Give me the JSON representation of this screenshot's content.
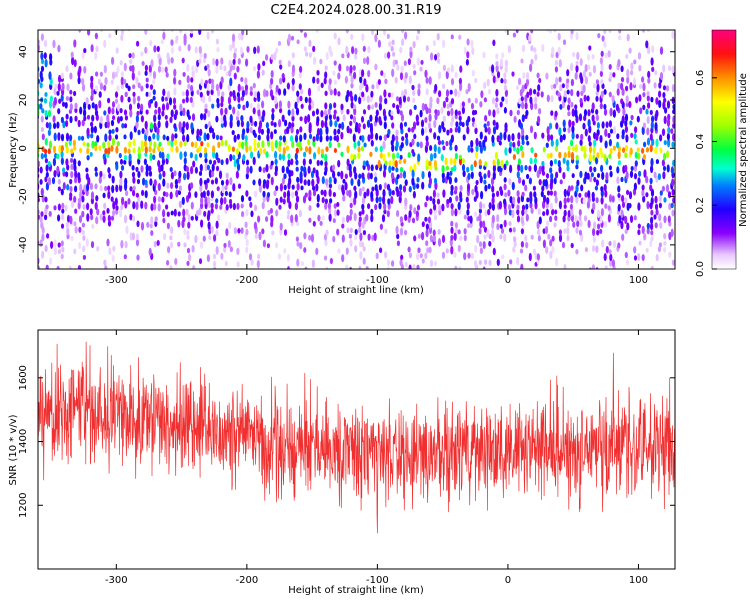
{
  "title": "C2E4.2024.028.00.31.R19",
  "chart_data": [
    {
      "type": "heatmap",
      "xlabel": "Height of straight line (km)",
      "ylabel": "Frequency (Hz)",
      "xlim": [
        -360,
        128
      ],
      "ylim": [
        -50,
        49
      ],
      "xticks": [
        -300,
        -200,
        -100,
        0,
        100
      ],
      "yticks": [
        -40,
        -20,
        0,
        20,
        40
      ],
      "grid": false,
      "ridge": {
        "x": [
          -360,
          -300,
          -250,
          -200,
          -160,
          -130,
          -110,
          -90,
          -75,
          -60,
          -45,
          -30,
          -10,
          10,
          30,
          60,
          90,
          128
        ],
        "y": [
          0,
          0,
          0.5,
          0.5,
          0,
          -0.5,
          -2,
          -5,
          -7,
          -7,
          -6,
          -5,
          -4.5,
          -3.5,
          -2.5,
          -2,
          -1.5,
          -1
        ]
      },
      "colorbar": {
        "label": "Normalized spectral amplitude",
        "min": 0,
        "max": 0.75,
        "ticks": [
          0.0,
          0.2,
          0.4,
          0.6
        ]
      }
    },
    {
      "type": "line",
      "xlabel": "Height of straight line (km)",
      "ylabel": "SNR (10 * v/v)",
      "xlim": [
        -360,
        128
      ],
      "ylim": [
        1000,
        1750
      ],
      "xticks": [
        -300,
        -200,
        -100,
        0,
        100
      ],
      "yticks": [
        1200,
        1400,
        1600
      ],
      "grid": false,
      "color": "#f03030",
      "trend": {
        "x": [
          -360,
          -300,
          -250,
          -200,
          -150,
          -100,
          -50,
          0,
          50,
          100,
          128
        ],
        "y": [
          1480,
          1490,
          1450,
          1420,
          1380,
          1360,
          1360,
          1370,
          1380,
          1390,
          1395
        ]
      },
      "spread": 110
    }
  ]
}
